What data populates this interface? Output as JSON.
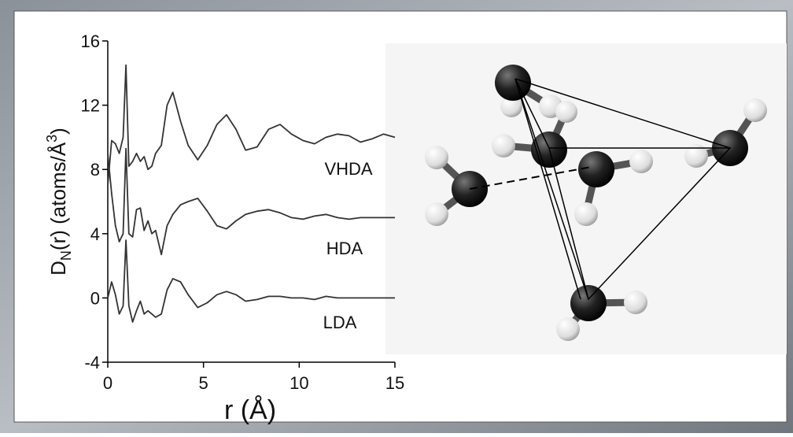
{
  "chart_data": {
    "type": "line",
    "xlabel": "r (Å)",
    "ylabel": [
      "D",
      "N",
      "(r) (atoms/Å",
      "3",
      ")"
    ],
    "x": [
      0,
      0.2,
      0.4,
      0.6,
      0.8,
      0.95,
      1.1,
      1.3,
      1.5,
      1.7,
      1.9,
      2.1,
      2.3,
      2.5,
      2.8,
      3.1,
      3.4,
      3.8,
      4.2,
      4.7,
      5.2,
      5.7,
      6.2,
      6.7,
      7.2,
      7.8,
      8.4,
      9.0,
      9.6,
      10.2,
      10.8,
      11.4,
      12.0,
      12.6,
      13.2,
      13.8,
      14.4,
      15
    ],
    "series": [
      {
        "name": "VHDA",
        "color": "#333333",
        "values": [
          7,
          9.8,
          9.6,
          9,
          10,
          14.5,
          8.2,
          8.5,
          9,
          8.5,
          8.8,
          8,
          8.2,
          9,
          9.5,
          12,
          12.8,
          11,
          9.5,
          8.6,
          9.5,
          10.8,
          11.4,
          10.5,
          9.2,
          9.4,
          10.5,
          10.8,
          10.2,
          9.8,
          9.6,
          10,
          10.2,
          10.1,
          9.7,
          9.9,
          10.2,
          10
        ]
      },
      {
        "name": "HDA",
        "color": "#333333",
        "values": [
          9,
          6.5,
          4.5,
          3.5,
          4,
          9.3,
          4,
          3.8,
          5.5,
          5.6,
          4.2,
          4.8,
          4,
          4.2,
          2.7,
          4.5,
          5.2,
          5.8,
          6,
          6.2,
          5.4,
          4.5,
          4.3,
          4.8,
          5.2,
          5.4,
          5.5,
          5.3,
          5,
          4.9,
          5.1,
          5.2,
          5,
          4.9,
          5,
          5,
          5,
          5
        ]
      },
      {
        "name": "LDA",
        "color": "#333333",
        "values": [
          0,
          1,
          0.2,
          -1,
          -0.5,
          3.6,
          -0.5,
          -1.5,
          -0.8,
          -0.2,
          -1,
          -0.8,
          -1,
          -1.2,
          -1,
          0.5,
          1.2,
          1,
          0.2,
          -0.6,
          -0.3,
          0.2,
          0.4,
          0.2,
          -0.2,
          -0.1,
          0.1,
          0.1,
          0,
          0,
          -0.1,
          0.1,
          0,
          0,
          0,
          0,
          0,
          0
        ]
      }
    ],
    "xlim": [
      0,
      15
    ],
    "xticks": [
      0,
      5,
      10,
      15
    ],
    "ylim": [
      -4,
      16
    ],
    "yticks": [
      -4,
      0,
      4,
      8,
      12,
      16
    ]
  }
}
